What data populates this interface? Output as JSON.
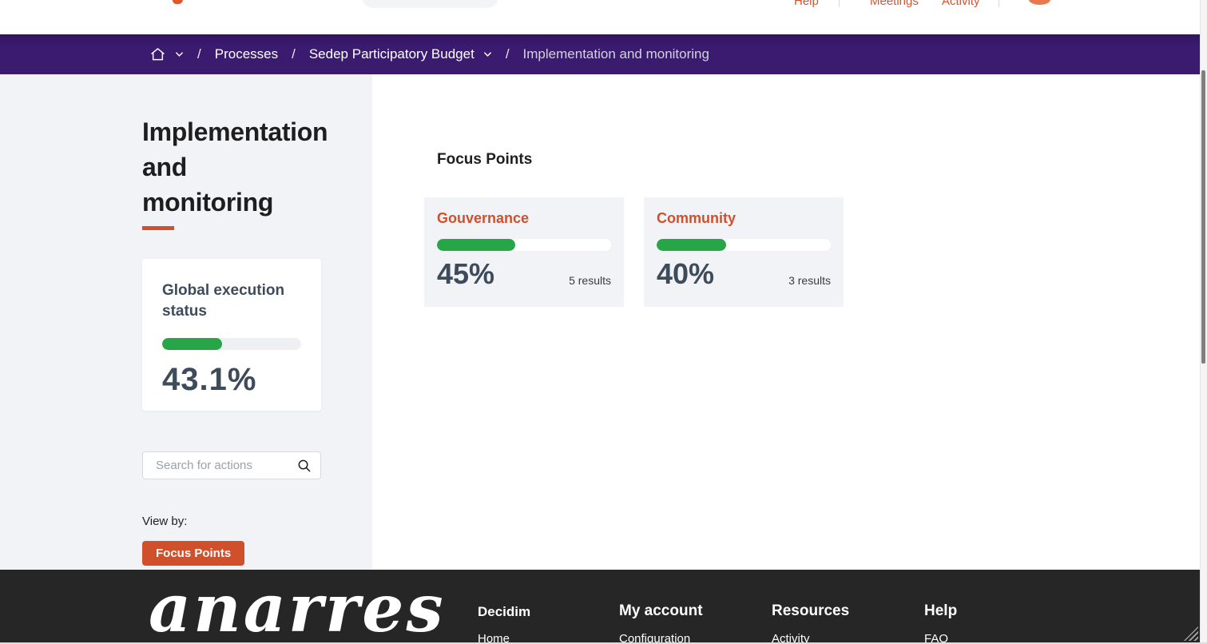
{
  "header": {
    "nav_items": [
      "Help",
      "Meetings",
      "Activity"
    ]
  },
  "breadcrumb": {
    "separator": "/",
    "items": [
      "Processes",
      "Sedep Participatory Budget",
      "Implementation and monitoring"
    ]
  },
  "sidebar": {
    "title": "Implementation and monitoring",
    "status_card": {
      "title": "Global execution status",
      "percent": 43.1,
      "percent_label": "43.1%"
    },
    "search": {
      "placeholder": "Search for actions"
    },
    "view_by_label": "View by:",
    "view_by_button": "Focus Points"
  },
  "main": {
    "heading": "Focus Points",
    "cards": [
      {
        "title": "Gouvernance",
        "percent": 45,
        "percent_label": "45%",
        "results_label": "5 results"
      },
      {
        "title": "Community",
        "percent": 40,
        "percent_label": "40%",
        "results_label": "3 results"
      }
    ]
  },
  "footer": {
    "logo_text": "anarres",
    "columns": [
      {
        "heading": "Decidim",
        "links": [
          "Home"
        ]
      },
      {
        "heading": "My account",
        "links": [
          "Configuration"
        ]
      },
      {
        "heading": "Resources",
        "links": [
          "Activity"
        ]
      },
      {
        "heading": "Help",
        "links": [
          "FAQ"
        ]
      }
    ]
  },
  "colors": {
    "accent_orange": "#d0502b",
    "breadcrumb_purple": "#3a1b70",
    "progress_green": "#28a546",
    "slate_text": "#3e4b5a",
    "panel_gray": "#f2f3f7",
    "footer_dark": "#262626"
  }
}
